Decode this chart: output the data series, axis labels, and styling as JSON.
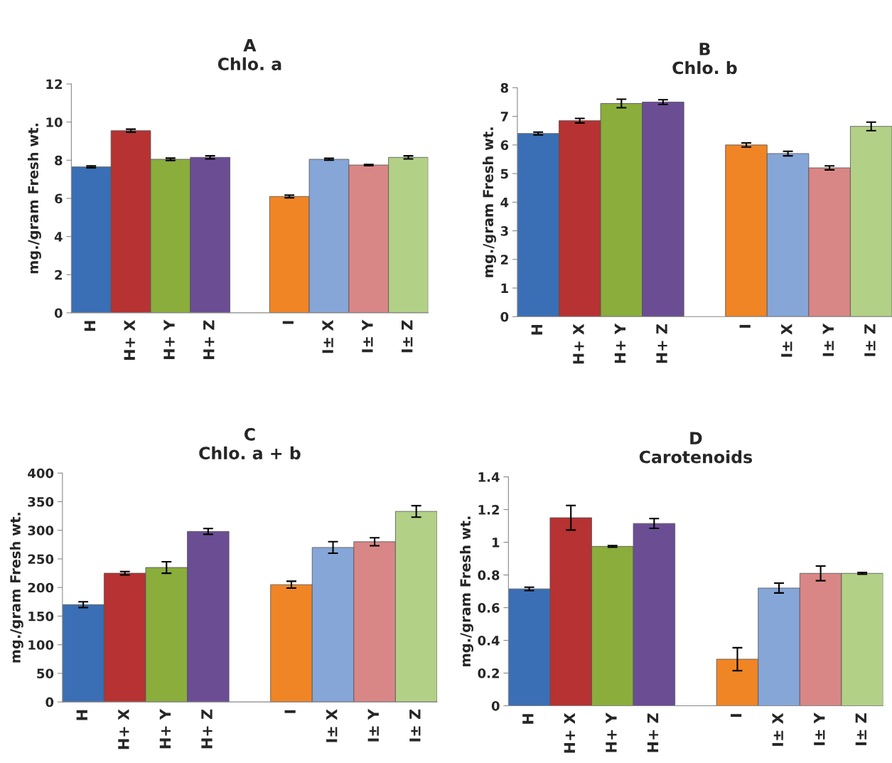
{
  "chart_data": [
    {
      "type": "bar",
      "title": "A",
      "subtitle": "Chlo. a",
      "ylabel": "mg./gram Fresh wt.",
      "categories": [
        "H",
        "H+ X",
        "H+ Y",
        "H+ Z",
        null,
        "I",
        "I± X",
        "I± Y",
        "I± Z"
      ],
      "values": [
        7.65,
        9.55,
        8.05,
        8.15,
        null,
        6.1,
        8.05,
        7.75,
        8.15
      ],
      "errors": [
        0.05,
        0.08,
        0.06,
        0.08,
        null,
        0.07,
        0.05,
        0.03,
        0.08
      ],
      "colors": [
        "#3a6fb5",
        "#b73232",
        "#8aad3c",
        "#6b4d94",
        null,
        "#f08525",
        "#86a6d8",
        "#d98686",
        "#b3d087"
      ],
      "ylim": [
        0,
        12
      ],
      "yticks": [
        0,
        2,
        4,
        6,
        8,
        10,
        12
      ],
      "grid": false,
      "legend": false
    },
    {
      "type": "bar",
      "title": "B",
      "subtitle": "Chlo. b",
      "ylabel": "mg./gram Fresh wt.",
      "categories": [
        "H",
        "H+ X",
        "H+ Y",
        "H+ Z",
        null,
        "I",
        "I± X",
        "I± Y",
        "I± Z"
      ],
      "values": [
        6.4,
        6.85,
        7.45,
        7.5,
        null,
        6.0,
        5.7,
        5.2,
        6.65
      ],
      "errors": [
        0.05,
        0.08,
        0.15,
        0.08,
        null,
        0.07,
        0.08,
        0.07,
        0.15
      ],
      "colors": [
        "#3a6fb5",
        "#b73232",
        "#8aad3c",
        "#6b4d94",
        null,
        "#f08525",
        "#86a6d8",
        "#d98686",
        "#b3d087"
      ],
      "ylim": [
        0,
        8
      ],
      "yticks": [
        0,
        1,
        2,
        3,
        4,
        5,
        6,
        7,
        8
      ],
      "grid": false,
      "legend": false
    },
    {
      "type": "bar",
      "title": "C",
      "subtitle": "Chlo. a + b",
      "ylabel": "mg./gram Fresh wt.",
      "categories": [
        "H",
        "H+ X",
        "H+ Y",
        "H+ Z",
        null,
        "I",
        "I± X",
        "I± Y",
        "I± Z"
      ],
      "values": [
        170,
        225,
        235,
        298,
        null,
        205,
        270,
        280,
        333
      ],
      "errors": [
        5,
        3,
        10,
        5,
        null,
        6,
        10,
        7,
        10
      ],
      "colors": [
        "#3a6fb5",
        "#b73232",
        "#8aad3c",
        "#6b4d94",
        null,
        "#f08525",
        "#86a6d8",
        "#d98686",
        "#b3d087"
      ],
      "ylim": [
        0,
        400
      ],
      "yticks": [
        0,
        50,
        100,
        150,
        200,
        250,
        300,
        350,
        400
      ],
      "grid": false,
      "legend": false
    },
    {
      "type": "bar",
      "title": "D",
      "subtitle": "Carotenoids",
      "ylabel": "mg./gram Fresh wt.",
      "categories": [
        "H",
        "H+ X",
        "H+ Y",
        "H+ Z",
        null,
        "I",
        "I± X",
        "I± Y",
        "I± Z"
      ],
      "values": [
        0.715,
        1.15,
        0.975,
        1.115,
        null,
        0.285,
        0.72,
        0.81,
        0.81
      ],
      "errors": [
        0.01,
        0.075,
        0.005,
        0.03,
        null,
        0.07,
        0.03,
        0.045,
        0.005
      ],
      "colors": [
        "#3a6fb5",
        "#b73232",
        "#8aad3c",
        "#6b4d94",
        null,
        "#f08525",
        "#86a6d8",
        "#d98686",
        "#b3d087"
      ],
      "ylim": [
        0,
        1.4
      ],
      "yticks": [
        0,
        0.2,
        0.4,
        0.6,
        0.8,
        1,
        1.2,
        1.4
      ],
      "grid": false,
      "legend": false
    }
  ]
}
